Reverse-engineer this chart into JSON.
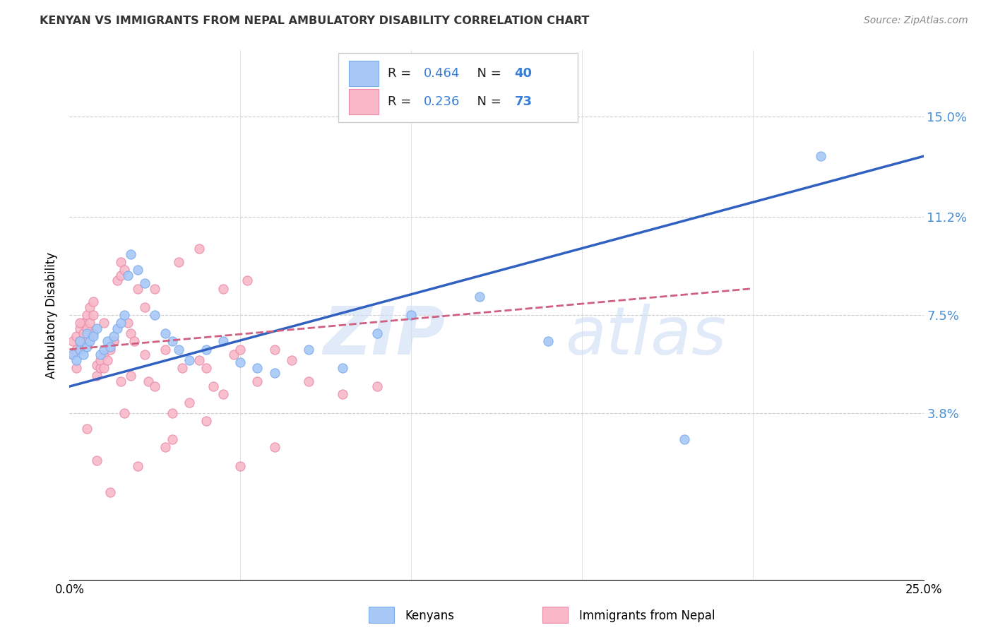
{
  "title": "KENYAN VS IMMIGRANTS FROM NEPAL AMBULATORY DISABILITY CORRELATION CHART",
  "source": "Source: ZipAtlas.com",
  "ylabel": "Ambulatory Disability",
  "xlim": [
    0.0,
    0.25
  ],
  "ylim": [
    -0.025,
    0.175
  ],
  "xticks": [
    0.0,
    0.05,
    0.1,
    0.15,
    0.2,
    0.25
  ],
  "ytick_labels_right": [
    "3.8%",
    "7.5%",
    "11.2%",
    "15.0%"
  ],
  "ytick_values_right": [
    0.038,
    0.075,
    0.112,
    0.15
  ],
  "kenyan_color": "#a8c8f8",
  "kenyan_edge": "#7aabeb",
  "nepal_color": "#f8b8c8",
  "nepal_edge": "#e88aaa",
  "trend_kenyan_color": "#3060c0",
  "trend_nepal_color": "#d06080",
  "kenyan_trend_start_y": 0.048,
  "kenyan_trend_end_y": 0.135,
  "nepal_trend_start_y": 0.062,
  "nepal_trend_end_y": 0.085,
  "kenyan_scatter_x": [
    0.001,
    0.002,
    0.003,
    0.003,
    0.004,
    0.005,
    0.005,
    0.006,
    0.007,
    0.008,
    0.009,
    0.01,
    0.011,
    0.012,
    0.013,
    0.014,
    0.015,
    0.016,
    0.017,
    0.018,
    0.02,
    0.022,
    0.025,
    0.028,
    0.03,
    0.032,
    0.035,
    0.04,
    0.045,
    0.05,
    0.055,
    0.06,
    0.07,
    0.08,
    0.09,
    0.1,
    0.12,
    0.14,
    0.18,
    0.22
  ],
  "kenyan_scatter_y": [
    0.06,
    0.058,
    0.062,
    0.065,
    0.06,
    0.063,
    0.068,
    0.065,
    0.067,
    0.07,
    0.06,
    0.062,
    0.065,
    0.063,
    0.067,
    0.07,
    0.072,
    0.075,
    0.09,
    0.098,
    0.092,
    0.087,
    0.075,
    0.068,
    0.065,
    0.062,
    0.058,
    0.062,
    0.065,
    0.057,
    0.055,
    0.053,
    0.062,
    0.055,
    0.068,
    0.075,
    0.082,
    0.065,
    0.028,
    0.135
  ],
  "nepal_scatter_x": [
    0.001,
    0.001,
    0.002,
    0.002,
    0.003,
    0.003,
    0.004,
    0.004,
    0.005,
    0.005,
    0.006,
    0.006,
    0.007,
    0.007,
    0.008,
    0.008,
    0.009,
    0.009,
    0.01,
    0.01,
    0.011,
    0.012,
    0.013,
    0.014,
    0.015,
    0.015,
    0.016,
    0.017,
    0.018,
    0.019,
    0.02,
    0.022,
    0.023,
    0.025,
    0.028,
    0.03,
    0.033,
    0.035,
    0.038,
    0.04,
    0.042,
    0.045,
    0.048,
    0.05,
    0.055,
    0.06,
    0.065,
    0.07,
    0.08,
    0.09,
    0.002,
    0.003,
    0.005,
    0.007,
    0.01,
    0.013,
    0.015,
    0.018,
    0.022,
    0.028,
    0.032,
    0.038,
    0.045,
    0.052,
    0.005,
    0.008,
    0.012,
    0.016,
    0.02,
    0.025,
    0.03,
    0.04,
    0.05,
    0.06
  ],
  "nepal_scatter_y": [
    0.06,
    0.065,
    0.062,
    0.067,
    0.065,
    0.07,
    0.068,
    0.072,
    0.07,
    0.075,
    0.072,
    0.078,
    0.075,
    0.08,
    0.052,
    0.056,
    0.055,
    0.058,
    0.055,
    0.06,
    0.058,
    0.062,
    0.065,
    0.088,
    0.09,
    0.095,
    0.092,
    0.072,
    0.068,
    0.065,
    0.085,
    0.06,
    0.05,
    0.048,
    0.025,
    0.038,
    0.055,
    0.042,
    0.058,
    0.035,
    0.048,
    0.045,
    0.06,
    0.062,
    0.05,
    0.062,
    0.058,
    0.05,
    0.045,
    0.048,
    0.055,
    0.072,
    0.065,
    0.068,
    0.072,
    0.065,
    0.05,
    0.052,
    0.078,
    0.062,
    0.095,
    0.1,
    0.085,
    0.088,
    0.032,
    0.02,
    0.008,
    0.038,
    0.018,
    0.085,
    0.028,
    0.055,
    0.018,
    0.025
  ]
}
